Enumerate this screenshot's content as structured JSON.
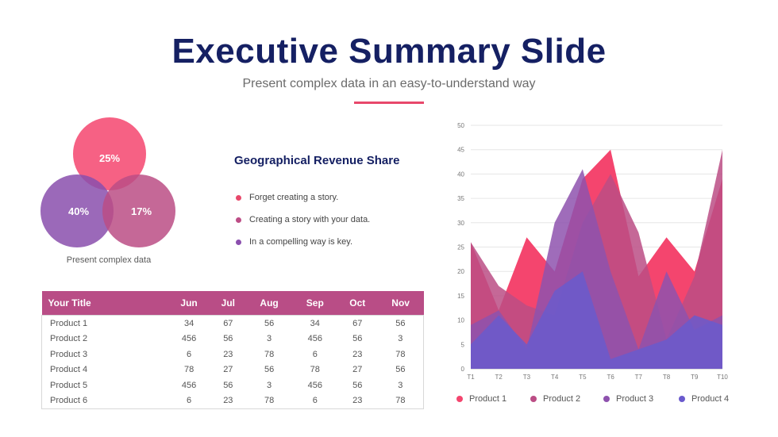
{
  "header": {
    "title": "Executive Summary Slide",
    "subtitle": "Present complex data in an easy-to-understand way",
    "accent_color": "#e8486b"
  },
  "venn": {
    "circles": [
      {
        "label": "25%",
        "color": "#f4456e"
      },
      {
        "label": "40%",
        "color": "#8a4fad"
      },
      {
        "label": "17%",
        "color": "#bb4d85"
      }
    ],
    "caption": "Present complex data"
  },
  "revenue_panel": {
    "title": "Geographical Revenue Share",
    "bullets": [
      {
        "text": "Forget creating a story.",
        "color": "#e8486b"
      },
      {
        "text": "Creating a story with your data.",
        "color": "#bd4d86"
      },
      {
        "text": "In a compelling way is key.",
        "color": "#8b4fae"
      }
    ]
  },
  "table": {
    "header_color": "#b94d86",
    "headers": [
      "Your Title",
      "Jun",
      "Jul",
      "Aug",
      "Sep",
      "Oct",
      "Nov"
    ],
    "rows": [
      [
        "Product 1",
        "34",
        "67",
        "56",
        "34",
        "67",
        "56"
      ],
      [
        "Product 2",
        "456",
        "56",
        "3",
        "456",
        "56",
        "3"
      ],
      [
        "Product 3",
        "6",
        "23",
        "78",
        "6",
        "23",
        "78"
      ],
      [
        "Product 4",
        "78",
        "27",
        "56",
        "78",
        "27",
        "56"
      ],
      [
        "Product 5",
        "456",
        "56",
        "3",
        "456",
        "56",
        "3"
      ],
      [
        "Product 6",
        "6",
        "23",
        "78",
        "6",
        "23",
        "78"
      ]
    ]
  },
  "chart_data": {
    "type": "area",
    "title": "",
    "xlabel": "",
    "ylabel": "",
    "categories": [
      "T1",
      "T2",
      "T3",
      "T4",
      "T5",
      "T6",
      "T7",
      "T8",
      "T9",
      "T10"
    ],
    "ylim": [
      0,
      50
    ],
    "yticks": [
      0,
      5,
      10,
      15,
      20,
      25,
      30,
      35,
      40,
      45,
      50
    ],
    "grid": true,
    "legend_position": "bottom",
    "series": [
      {
        "name": "Product 1",
        "color": "#f4456e",
        "values": [
          26,
          12,
          27,
          20,
          39,
          45,
          19,
          27,
          20,
          39
        ]
      },
      {
        "name": "Product 2",
        "color": "#bb4d85",
        "values": [
          26,
          17,
          13,
          11,
          30,
          40,
          28,
          6,
          19,
          45
        ]
      },
      {
        "name": "Product 3",
        "color": "#8e52ae",
        "values": [
          9,
          12,
          4,
          30,
          41,
          20,
          4,
          20,
          8,
          11
        ]
      },
      {
        "name": "Product 4",
        "color": "#6a5acd",
        "values": [
          5,
          11,
          5,
          16,
          20,
          2,
          4,
          6,
          11,
          9
        ]
      }
    ]
  }
}
